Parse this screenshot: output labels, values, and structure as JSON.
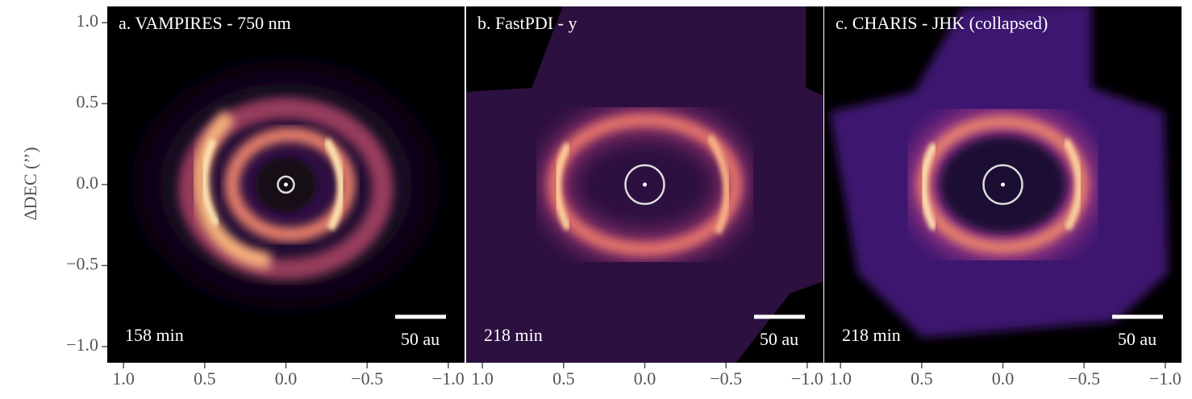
{
  "chart_data": [
    {
      "type": "image",
      "title": "a.  VAMPIRES - 750 nm",
      "annotation": "158 min",
      "scale_bar": "50 au",
      "ylabel": "ΔDEC (’’)",
      "xlim": [
        1.1,
        -1.1
      ],
      "ylim": [
        -1.1,
        1.1
      ],
      "xticks": [
        {
          "value": 1,
          "label": "1.0"
        },
        0.5,
        {
          "value": 0,
          "label": "0.0"
        },
        {
          "value": -0.5,
          "label": "−0.5"
        },
        {
          "value": -1,
          "label": "−1.0"
        }
      ],
      "yticks": [
        {
          "value": -1,
          "label": "−1.0"
        },
        {
          "value": -0.5,
          "label": "−0.5"
        },
        {
          "value": 0,
          "label": "0.0"
        },
        0.5,
        {
          "value": 1,
          "label": "1.0"
        }
      ]
    },
    {
      "type": "image",
      "title": "b.  FastPDI - y",
      "annotation": "218 min",
      "scale_bar": "50 au",
      "xlim": [
        1.1,
        -1.1
      ],
      "ylim": [
        -1.1,
        1.1
      ],
      "xticks": [
        {
          "value": 1,
          "label": "1.0"
        },
        0.5,
        {
          "value": 0,
          "label": "0.0"
        },
        {
          "value": -0.5,
          "label": "−0.5"
        },
        {
          "value": -1,
          "label": "−1.0"
        }
      ]
    },
    {
      "type": "image",
      "title": "c.  CHARIS - JHK (collapsed)",
      "annotation": "218 min",
      "scale_bar": "50 au",
      "xlim": [
        1.1,
        -1.1
      ],
      "ylim": [
        -1.1,
        1.1
      ],
      "xticks": [
        {
          "value": 1,
          "label": "1.0"
        },
        0.5,
        {
          "value": 0,
          "label": "0.0"
        },
        {
          "value": -0.5,
          "label": "−0.5"
        },
        {
          "value": -1,
          "label": "−1.0"
        }
      ]
    }
  ]
}
